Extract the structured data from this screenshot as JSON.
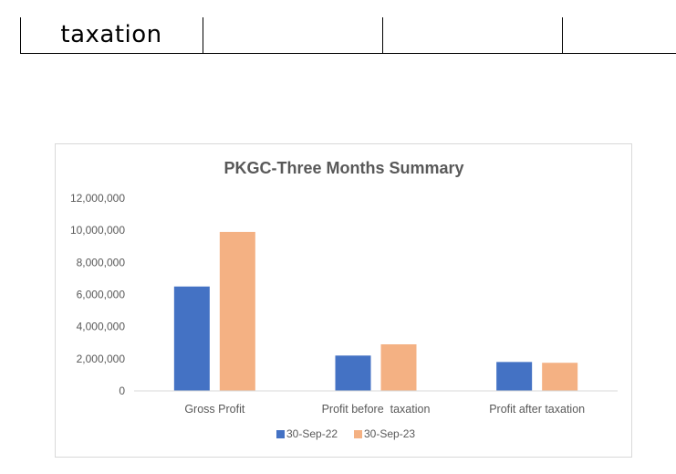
{
  "header_table": {
    "cell_text": "taxation"
  },
  "chart_data": {
    "type": "bar",
    "title": "PKGC-Three Months Summary",
    "categories": [
      "Gross Profit",
      "Profit before  taxation",
      "Profit after taxation"
    ],
    "series": [
      {
        "name": "30-Sep-22",
        "color": "#4472c4",
        "values": [
          6500000,
          2200000,
          1800000
        ]
      },
      {
        "name": "30-Sep-23",
        "color": "#f4b183",
        "values": [
          9900000,
          2900000,
          1750000
        ]
      }
    ],
    "ylim": [
      0,
      12000000
    ],
    "yticks": [
      "0",
      "2,000,000",
      "4,000,000",
      "6,000,000",
      "8,000,000",
      "10,000,000",
      "12,000,000"
    ],
    "ytick_values": [
      0,
      2000000,
      4000000,
      6000000,
      8000000,
      10000000,
      12000000
    ],
    "xlabel": "",
    "ylabel": "",
    "grid": false,
    "legend": "bottom"
  }
}
